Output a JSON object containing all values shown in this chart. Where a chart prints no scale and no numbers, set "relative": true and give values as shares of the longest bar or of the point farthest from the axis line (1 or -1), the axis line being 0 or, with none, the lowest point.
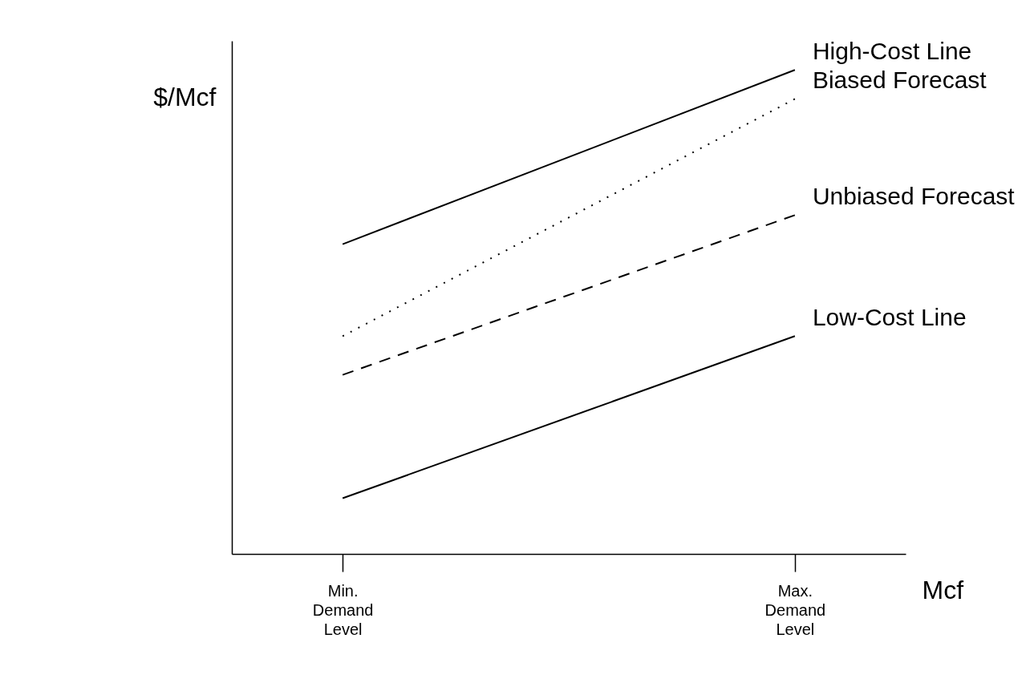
{
  "chart_data": {
    "type": "line",
    "relative": true,
    "ylabel": "$/Mcf",
    "xlabel": "Mcf",
    "categories": [
      "Min.\nDemand\nLevel",
      "Max.\nDemand\nLevel"
    ],
    "legend": false,
    "grid": false,
    "marker": "none",
    "series": [
      {
        "name": "High-Cost Line",
        "color": "#000000",
        "line_style": "solid",
        "values": [
          0.64,
          1.0
        ]
      },
      {
        "name": "Biased Forecast",
        "color": "#000000",
        "line_style": "dotted",
        "values": [
          0.45,
          0.94
        ]
      },
      {
        "name": "Unbiased Forecast",
        "color": "#000000",
        "line_style": "dashed",
        "values": [
          0.37,
          0.7
        ]
      },
      {
        "name": "Low-Cost Line",
        "color": "#000000",
        "line_style": "solid",
        "values": [
          0.115,
          0.45
        ]
      }
    ]
  }
}
